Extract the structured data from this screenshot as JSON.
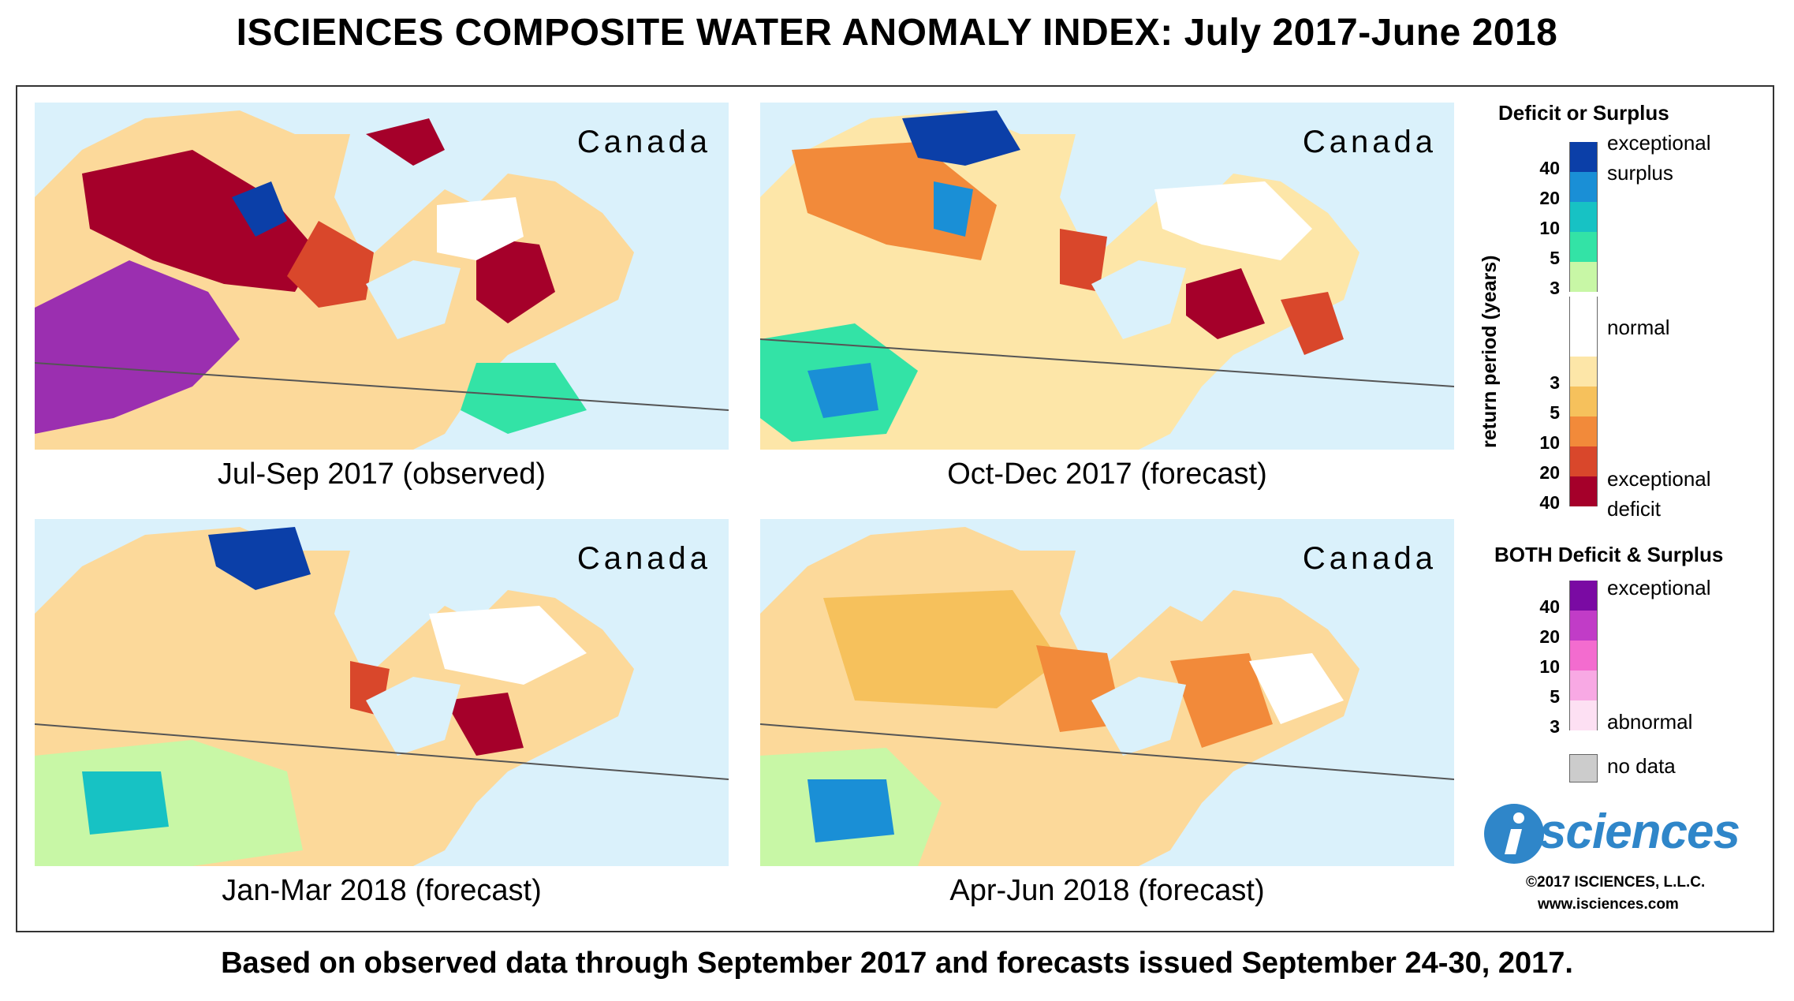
{
  "title": "ISCIENCES COMPOSITE WATER ANOMALY INDEX: July 2017-June 2018",
  "footer": "Based on observed data through September 2017 and forecasts issued September 24-30, 2017.",
  "panels": [
    {
      "caption": "Jul-Sep 2017 (observed)",
      "region": "Canada"
    },
    {
      "caption": "Oct-Dec 2017 (forecast)",
      "region": "Canada"
    },
    {
      "caption": "Jan-Mar 2018 (forecast)",
      "region": "Canada"
    },
    {
      "caption": "Apr-Jun 2018 (forecast)",
      "region": "Canada"
    }
  ],
  "legend": {
    "deficit_surplus_title": "Deficit or Surplus",
    "axis_label": "return period (years)",
    "exceptional_surplus": "exceptional surplus",
    "exceptional_surplus_1": "exceptional",
    "exceptional_surplus_2": "surplus",
    "normal": "normal",
    "exceptional_deficit_1": "exceptional",
    "exceptional_deficit_2": "deficit",
    "surplus_ticks": [
      "40",
      "20",
      "10",
      "5",
      "3"
    ],
    "deficit_ticks": [
      "3",
      "5",
      "10",
      "20",
      "40"
    ],
    "surplus_colors": [
      "#0b3fa8",
      "#1a8fd6",
      "#17c2c4",
      "#33e3a6",
      "#c8f7a6"
    ],
    "normal_color": "#ffffff",
    "deficit_colors": [
      "#fde6a8",
      "#f6c15c",
      "#f28a3a",
      "#d9472b",
      "#a5002a"
    ],
    "both_title": "BOTH Deficit & Surplus",
    "both_ticks": [
      "40",
      "20",
      "10",
      "5",
      "3"
    ],
    "both_colors": [
      "#7a0aa3",
      "#c13cc7",
      "#f36ccf",
      "#f8a9e4",
      "#fde0f3"
    ],
    "both_top": "exceptional",
    "both_bottom": "abnormal",
    "no_data": "no data",
    "no_data_color": "#cccccc"
  },
  "branding": {
    "logo_text": "sciences",
    "logo_letter": "i",
    "copyright": "©2017 ISCIENCES, L.L.C.",
    "url": "www.isciences.com"
  }
}
